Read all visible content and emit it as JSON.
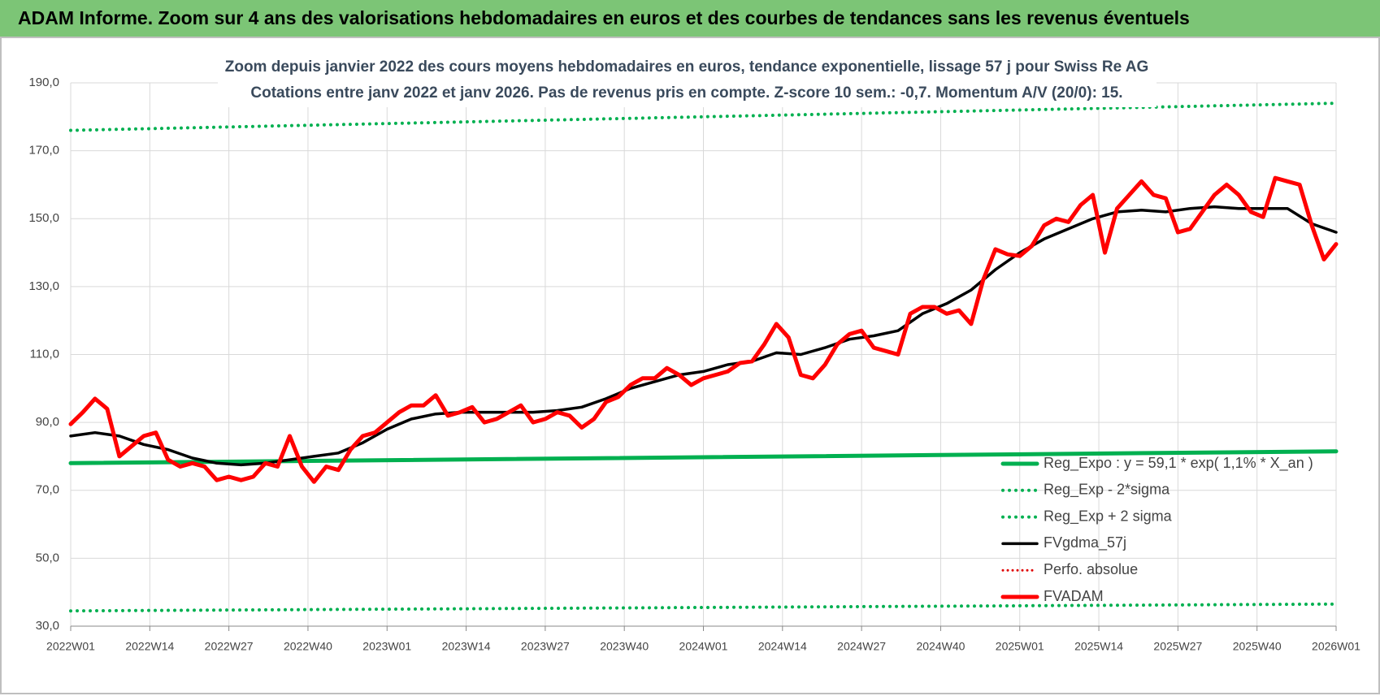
{
  "chart_data": {
    "type": "line",
    "title": "ADAM Informe. Zoom sur 4 ans des valorisations hebdomadaires en euros et des courbes de tendances sans les revenus éventuels",
    "subtitle": [
      "Zoom depuis janvier 2022 des cours moyens hebdomadaires en euros, tendance exponentielle, lissage 57 j pour Swiss Re AG",
      "Cotations entre janv 2022 et janv 2026. Pas de revenus pris en compte. Z-score 10 sem.: -0,7. Momentum A/V (20/0): 15."
    ],
    "xlim": [
      0,
      208
    ],
    "xticks": [
      {
        "value": 0,
        "label": "2022W01"
      },
      {
        "value": 13,
        "label": "2022W14"
      },
      {
        "value": 26,
        "label": "2022W27"
      },
      {
        "value": 39,
        "label": "2022W40"
      },
      {
        "value": 52,
        "label": "2023W01"
      },
      {
        "value": 65,
        "label": "2023W14"
      },
      {
        "value": 78,
        "label": "2023W27"
      },
      {
        "value": 91,
        "label": "2023W40"
      },
      {
        "value": 104,
        "label": "2024W01"
      },
      {
        "value": 117,
        "label": "2024W14"
      },
      {
        "value": 130,
        "label": "2024W27"
      },
      {
        "value": 143,
        "label": "2024W40"
      },
      {
        "value": 156,
        "label": "2025W01"
      },
      {
        "value": 169,
        "label": "2025W14"
      },
      {
        "value": 182,
        "label": "2025W27"
      },
      {
        "value": 195,
        "label": "2025W40"
      },
      {
        "value": 208,
        "label": "2026W01"
      }
    ],
    "ylim": [
      30,
      190
    ],
    "yticks": [
      {
        "value": 30,
        "label": "30,0"
      },
      {
        "value": 50,
        "label": "50,0"
      },
      {
        "value": 70,
        "label": "70,0"
      },
      {
        "value": 90,
        "label": "90,0"
      },
      {
        "value": 110,
        "label": "110,0"
      },
      {
        "value": 130,
        "label": "130,0"
      },
      {
        "value": 150,
        "label": "150,0"
      },
      {
        "value": 170,
        "label": "170,0"
      },
      {
        "value": 190,
        "label": "190,0"
      }
    ],
    "grid": true,
    "legend": "lower-right",
    "series": [
      {
        "name": "Reg_Expo : y = 59,1 * exp( 1,1% *  X_an )",
        "color": "#00b050",
        "dash": "solid",
        "width": 5,
        "x": [
          0,
          208
        ],
        "values": [
          78,
          81.5
        ]
      },
      {
        "name": "Reg_Exp - 2*sigma",
        "color": "#00b050",
        "dash": "dotted",
        "width": 4,
        "x": [
          0,
          208
        ],
        "values": [
          34.5,
          36.5
        ]
      },
      {
        "name": "Reg_Exp + 2 sigma",
        "color": "#00b050",
        "dash": "dotted",
        "width": 4,
        "x": [
          0,
          208
        ],
        "values": [
          176,
          184
        ]
      },
      {
        "name": "FVgdma_57j",
        "color": "#000000",
        "dash": "solid",
        "width": 3.5,
        "x": [
          0,
          4,
          8,
          12,
          16,
          20,
          24,
          28,
          32,
          36,
          40,
          44,
          48,
          52,
          56,
          60,
          64,
          68,
          72,
          76,
          80,
          84,
          88,
          92,
          96,
          100,
          104,
          108,
          112,
          116,
          120,
          124,
          128,
          132,
          136,
          140,
          144,
          148,
          152,
          156,
          160,
          164,
          168,
          172,
          176,
          180,
          184,
          188,
          192,
          196,
          200,
          204,
          208
        ],
        "values": [
          86,
          87,
          86,
          83.5,
          82,
          79.5,
          78,
          77.5,
          78,
          79,
          80,
          81,
          84,
          88,
          91,
          92.5,
          93,
          93,
          93,
          93,
          93.5,
          94.5,
          97,
          100,
          102,
          104,
          105,
          107,
          108,
          110.5,
          110,
          112,
          114.5,
          115.5,
          117,
          122,
          125,
          129,
          135,
          140,
          144,
          147,
          150,
          152,
          152.5,
          152,
          153,
          153.5,
          153,
          153,
          153,
          148.5,
          146
        ]
      },
      {
        "name": "Perfo. absolue",
        "color": "#e00000",
        "dash": "dotted",
        "width": 3,
        "x": [],
        "values": []
      },
      {
        "name": "FVADAM",
        "color": "#ff0000",
        "dash": "solid",
        "width": 5,
        "x": [
          0,
          2,
          4,
          6,
          8,
          10,
          12,
          14,
          16,
          18,
          20,
          22,
          24,
          26,
          28,
          30,
          32,
          34,
          36,
          38,
          40,
          42,
          44,
          46,
          48,
          50,
          52,
          54,
          56,
          58,
          60,
          62,
          64,
          66,
          68,
          70,
          72,
          74,
          76,
          78,
          80,
          82,
          84,
          86,
          88,
          90,
          92,
          94,
          96,
          98,
          100,
          102,
          104,
          106,
          108,
          110,
          112,
          114,
          116,
          118,
          120,
          122,
          124,
          126,
          128,
          130,
          132,
          134,
          136,
          138,
          140,
          142,
          144,
          146,
          148,
          150,
          152,
          154,
          156,
          158,
          160,
          162,
          164,
          166,
          168,
          170,
          172,
          174,
          176,
          178,
          180,
          182,
          184,
          186,
          188,
          190,
          192,
          194,
          196,
          198,
          200,
          202,
          204,
          206,
          208
        ],
        "values": [
          89.5,
          93,
          97,
          94,
          80,
          83,
          86,
          87,
          79,
          77,
          78,
          77,
          73,
          74,
          73,
          74,
          78,
          77,
          86,
          77,
          72.5,
          77,
          76,
          82,
          86,
          87,
          90,
          93,
          95,
          95,
          98,
          92,
          93,
          94.5,
          90,
          91,
          93,
          95,
          90,
          91,
          93,
          92,
          88.5,
          91,
          96,
          97.5,
          101,
          103,
          103,
          106,
          104,
          101,
          103,
          104,
          105,
          107.5,
          108,
          113,
          119,
          115,
          104,
          103,
          107,
          113,
          116,
          117,
          112,
          111,
          110,
          122,
          124,
          124,
          122,
          123,
          119,
          132,
          141,
          139.5,
          139,
          142,
          148,
          150,
          149,
          154,
          157,
          140,
          153,
          157,
          161,
          157,
          156,
          146,
          147,
          152,
          157,
          160,
          157,
          152,
          150.5,
          162,
          161,
          160,
          148,
          138,
          142.5
        ]
      }
    ]
  }
}
